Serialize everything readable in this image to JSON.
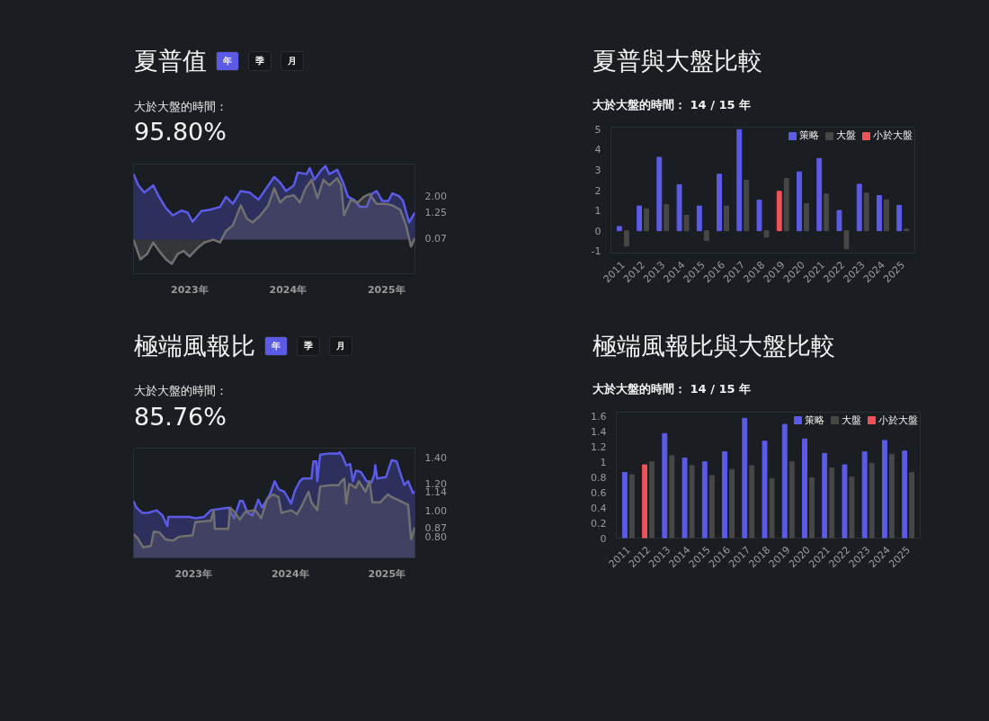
{
  "chart_data": [
    {
      "type": "area",
      "title": "夏普值",
      "subtitle": "大於大盤的時間：",
      "annotations": [
        "年",
        "季",
        "月",
        "95.80%"
      ],
      "xlim": [
        2022.43,
        2025.29
      ],
      "xticks": [
        {
          "value": 2023,
          "label": "2023年"
        },
        {
          "value": 2024,
          "label": "2024年"
        },
        {
          "value": 2025,
          "label": "2025年"
        }
      ],
      "ylim": [
        -1.57,
        3.48
      ],
      "yticks": [
        {
          "value": 0.07,
          "label": "0.07"
        },
        {
          "value": 1.25,
          "label": "1.25"
        },
        {
          "value": 2,
          "label": "2.00"
        }
      ],
      "series": [
        {
          "color": "#5b5be8",
          "x": [
            2022.43,
            2022.48,
            2022.54,
            2022.63,
            2022.69,
            2022.76,
            2022.83,
            2022.92,
            2022.98,
            2023.03,
            2023.12,
            2023.21,
            2023.31,
            2023.37,
            2023.44,
            2023.52,
            2023.61,
            2023.7,
            2023.8,
            2023.86,
            2023.92,
            2023.98,
            2024.06,
            2024.1,
            2024.19,
            2024.22,
            2024.27,
            2024.33,
            2024.38,
            2024.42,
            2024.5,
            2024.56,
            2024.61,
            2024.67,
            2024.73,
            2024.8,
            2024.85,
            2024.9,
            2024.96,
            2025.02,
            2025.06,
            2025.13,
            2025.17,
            2025.23,
            2025.29
          ],
          "values": [
            3.02,
            2.5,
            2.17,
            2.5,
            1.97,
            1.45,
            1.12,
            1.34,
            1.25,
            0.82,
            1.32,
            1.38,
            1.51,
            1.97,
            1.65,
            2.24,
            2.17,
            1.84,
            2.5,
            2.89,
            2.63,
            2.24,
            2.5,
            3.09,
            3.02,
            3.29,
            2.76,
            3.15,
            3.39,
            3.02,
            3.22,
            2.63,
            1.97,
            1.84,
            1.51,
            1.51,
            2.1,
            2.24,
            1.78,
            1.78,
            2.13,
            2.0,
            1.78,
            0.79,
            1.25
          ]
        },
        {
          "color": "#707070",
          "x": [
            2022.43,
            2022.5,
            2022.57,
            2022.63,
            2022.69,
            2022.76,
            2022.82,
            2022.88,
            2022.94,
            2023.0,
            2023.08,
            2023.15,
            2023.24,
            2023.31,
            2023.37,
            2023.44,
            2023.52,
            2023.58,
            2023.64,
            2023.72,
            2023.8,
            2023.86,
            2023.92,
            2023.98,
            2024.06,
            2024.12,
            2024.18,
            2024.24,
            2024.3,
            2024.36,
            2024.42,
            2024.5,
            2024.54,
            2024.57,
            2024.64,
            2024.71,
            2024.77,
            2024.83,
            2024.9,
            2024.99,
            2025.06,
            2025.14,
            2025.2,
            2025.25,
            2025.29
          ],
          "values": [
            0.0,
            -0.91,
            -0.65,
            -0.13,
            -0.52,
            -0.91,
            -1.11,
            -0.65,
            -0.52,
            -0.78,
            -0.39,
            -0.13,
            0.0,
            -0.13,
            0.4,
            0.66,
            1.58,
            0.99,
            0.79,
            1.12,
            1.58,
            2.37,
            1.71,
            1.97,
            2.04,
            1.71,
            2.37,
            2.76,
            1.91,
            2.76,
            2.5,
            2.83,
            2.5,
            1.12,
            1.84,
            1.71,
            1.97,
            2.1,
            1.65,
            1.65,
            1.58,
            1.38,
            0.66,
            -0.32,
            0.07
          ]
        }
      ]
    },
    {
      "type": "bar",
      "title": "夏普與大盤比較",
      "subtitle": "大於大盤的時間： 14 / 15 年",
      "annotations": [
        "小於大盤"
      ],
      "legend": "top right",
      "categories": [
        "2011",
        "2012",
        "2013",
        "2014",
        "2015",
        "2016",
        "2017",
        "2018",
        "2019",
        "2020",
        "2021",
        "2022",
        "2023",
        "2024",
        "2025"
      ],
      "ylim": [
        -1.1,
        5.1
      ],
      "yticks": [
        -1,
        0,
        1,
        2,
        3,
        4,
        5
      ],
      "series": [
        {
          "name": "策略",
          "color": "#5b5be8",
          "colors": [
            "#5b5be8",
            "#5b5be8",
            "#5b5be8",
            "#5b5be8",
            "#5b5be8",
            "#5b5be8",
            "#5b5be8",
            "#5b5be8",
            "#f0525a",
            "#5b5be8",
            "#5b5be8",
            "#5b5be8",
            "#5b5be8",
            "#5b5be8",
            "#5b5be8"
          ],
          "values": [
            0.21,
            1.22,
            3.62,
            2.27,
            1.22,
            2.79,
            4.98,
            1.51,
            1.94,
            2.9,
            3.56,
            1.0,
            2.29,
            1.73,
            1.25
          ]
        },
        {
          "name": "大盤",
          "color": "#474747",
          "values": [
            -0.76,
            1.08,
            1.29,
            0.76,
            -0.48,
            1.22,
            2.49,
            -0.32,
            2.57,
            1.33,
            1.81,
            -0.89,
            1.86,
            1.52,
            0.08
          ]
        }
      ]
    },
    {
      "type": "area",
      "title": "極端風報比",
      "subtitle": "大於大盤的時間：",
      "annotations": [
        "年",
        "季",
        "月",
        "85.76%"
      ],
      "xlim": [
        2022.38,
        2025.29
      ],
      "xticks": [
        {
          "value": 2023,
          "label": "2023年"
        },
        {
          "value": 2024,
          "label": "2024年"
        },
        {
          "value": 2025,
          "label": "2025年"
        }
      ],
      "ylim": [
        0.64,
        1.47
      ],
      "yticks": [
        {
          "value": 0.8,
          "label": "0.80"
        },
        {
          "value": 0.87,
          "label": "0.87"
        },
        {
          "value": 1.0,
          "label": "1.00"
        },
        {
          "value": 1.14,
          "label": "1.14"
        },
        {
          "value": 1.2,
          "label": "1.20"
        },
        {
          "value": 1.4,
          "label": "1.40"
        }
      ],
      "series": [
        {
          "color": "#5b5be8",
          "x": [
            2022.38,
            2022.41,
            2022.47,
            2022.53,
            2022.62,
            2022.68,
            2022.73,
            2022.74,
            2022.84,
            2022.96,
            2023.02,
            2023.11,
            2023.18,
            2023.27,
            2023.36,
            2023.42,
            2023.48,
            2023.51,
            2023.56,
            2023.61,
            2023.67,
            2023.71,
            2023.79,
            2023.84,
            2023.88,
            2023.94,
            2024.01,
            2024.05,
            2024.1,
            2024.13,
            2024.22,
            2024.24,
            2024.27,
            2024.28,
            2024.31,
            2024.41,
            2024.5,
            2024.51,
            2024.54,
            2024.58,
            2024.62,
            2024.65,
            2024.68,
            2024.73,
            2024.79,
            2024.84,
            2024.87,
            2024.88,
            2024.9,
            2024.99,
            2025.05,
            2025.1,
            2025.13,
            2025.18,
            2025.22,
            2025.27,
            2025.29
          ],
          "values": [
            1.07,
            1.02,
            0.98,
            0.98,
            1.0,
            0.96,
            0.88,
            0.95,
            0.95,
            0.95,
            0.94,
            0.95,
            1.0,
            1.01,
            1.02,
            0.94,
            1.07,
            1.07,
            0.98,
            0.96,
            1.08,
            1.02,
            1.12,
            1.22,
            1.16,
            1.14,
            1.05,
            1.15,
            1.22,
            1.24,
            1.24,
            1.37,
            1.37,
            1.22,
            1.42,
            1.43,
            1.43,
            1.44,
            1.41,
            1.34,
            1.35,
            1.22,
            1.3,
            1.29,
            1.22,
            1.21,
            1.27,
            1.34,
            1.24,
            1.25,
            1.38,
            1.37,
            1.3,
            1.19,
            1.22,
            1.13,
            1.14
          ]
        },
        {
          "color": "#707070",
          "x": [
            2022.38,
            2022.42,
            2022.48,
            2022.56,
            2022.59,
            2022.65,
            2022.71,
            2022.79,
            2022.85,
            2022.99,
            2023.02,
            2023.18,
            2023.21,
            2023.22,
            2023.36,
            2023.38,
            2023.42,
            2023.48,
            2023.54,
            2023.64,
            2023.7,
            2023.76,
            2023.82,
            2023.88,
            2023.91,
            2024.01,
            2024.07,
            2024.11,
            2024.19,
            2024.22,
            2024.28,
            2024.31,
            2024.41,
            2024.5,
            2024.53,
            2024.56,
            2024.58,
            2024.61,
            2024.68,
            2024.71,
            2024.78,
            2024.82,
            2024.85,
            2024.93,
            2025.01,
            2025.05,
            2025.14,
            2025.22,
            2025.25,
            2025.29
          ],
          "values": [
            0.82,
            0.79,
            0.72,
            0.73,
            0.84,
            0.83,
            0.78,
            0.77,
            0.8,
            0.81,
            0.91,
            0.92,
            1.0,
            0.86,
            0.86,
            1.02,
            0.99,
            0.93,
            0.99,
            1.0,
            0.94,
            1.08,
            1.12,
            1.1,
            0.98,
            1.0,
            0.97,
            1.02,
            1.14,
            1.06,
            1.0,
            1.18,
            1.19,
            1.19,
            1.22,
            1.24,
            1.05,
            1.2,
            1.17,
            1.22,
            1.14,
            1.22,
            1.06,
            1.06,
            1.12,
            1.1,
            1.07,
            1.04,
            0.78,
            0.87
          ]
        }
      ]
    },
    {
      "type": "bar",
      "title": "極端風報比與大盤比較",
      "subtitle": "大於大盤的時間： 14 / 15 年",
      "annotations": [
        "小於大盤"
      ],
      "legend": "top right",
      "categories": [
        "2011",
        "2012",
        "2013",
        "2014",
        "2015",
        "2016",
        "2017",
        "2018",
        "2019",
        "2020",
        "2021",
        "2022",
        "2023",
        "2024",
        "2025"
      ],
      "ylim": [
        0,
        1.65
      ],
      "yticks": [
        0,
        0.2,
        0.4,
        0.6,
        0.8,
        1.0,
        1.2,
        1.4,
        1.6
      ],
      "series": [
        {
          "name": "策略",
          "color": "#5b5be8",
          "colors": [
            "#5b5be8",
            "#f0525a",
            "#5b5be8",
            "#5b5be8",
            "#5b5be8",
            "#5b5be8",
            "#5b5be8",
            "#5b5be8",
            "#5b5be8",
            "#5b5be8",
            "#5b5be8",
            "#5b5be8",
            "#5b5be8",
            "#5b5be8",
            "#5b5be8"
          ],
          "values": [
            0.86,
            0.96,
            1.37,
            1.05,
            1.0,
            1.13,
            1.57,
            1.27,
            1.49,
            1.3,
            1.11,
            0.96,
            1.13,
            1.28,
            1.14
          ]
        },
        {
          "name": "大盤",
          "color": "#474747",
          "values": [
            0.83,
            1.0,
            1.08,
            0.95,
            0.82,
            0.9,
            0.95,
            0.78,
            1.0,
            0.79,
            0.92,
            0.8,
            0.98,
            1.1,
            0.86
          ]
        }
      ]
    }
  ]
}
